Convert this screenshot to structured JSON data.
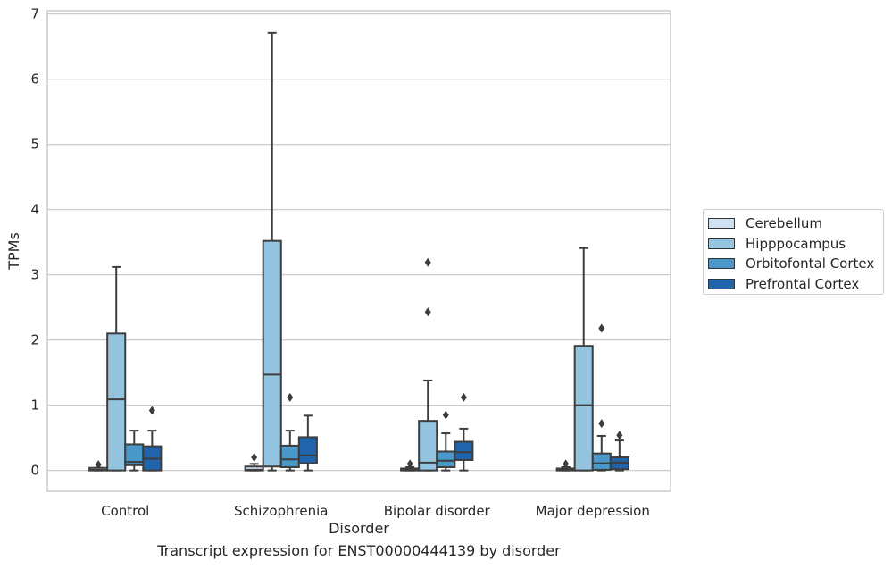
{
  "chart_data": {
    "type": "box",
    "title": "",
    "xlabel": "Disorder",
    "ylabel": "TPMs",
    "caption": "Transcript expression for ENST00000444139 by disorder",
    "ylim": [
      -0.32,
      7.05
    ],
    "yticks": [
      "0",
      "1",
      "2",
      "3",
      "4",
      "5",
      "6",
      "7"
    ],
    "grid": true,
    "legend_position": "right",
    "categories": [
      "Control",
      "Schizophrenia",
      "Bipolar disorder",
      "Major depression"
    ],
    "series": [
      {
        "name": "Cerebellum",
        "color": "#d0e1f2",
        "boxes": [
          {
            "whislo": 0,
            "q1": 0,
            "med": 0.01,
            "q3": 0.04,
            "whishi": 0.04,
            "fliers": [
              0.09
            ]
          },
          {
            "whislo": 0,
            "q1": 0,
            "med": 0.01,
            "q3": 0.06,
            "whishi": 0.1,
            "fliers": [
              0.2
            ]
          },
          {
            "whislo": 0,
            "q1": 0,
            "med": 0.01,
            "q3": 0.03,
            "whishi": 0.05,
            "fliers": [
              0.1
            ]
          },
          {
            "whislo": 0,
            "q1": 0,
            "med": 0.01,
            "q3": 0.03,
            "whishi": 0.05,
            "fliers": [
              0.1
            ]
          }
        ]
      },
      {
        "name": "Hipppocampus",
        "color": "#94c4df",
        "boxes": [
          {
            "whislo": 0,
            "q1": 0,
            "med": 1.09,
            "q3": 2.1,
            "whishi": 3.12,
            "fliers": []
          },
          {
            "whislo": 0,
            "q1": 0.06,
            "med": 1.47,
            "q3": 3.52,
            "whishi": 6.71,
            "fliers": []
          },
          {
            "whislo": 0,
            "q1": 0,
            "med": 0.12,
            "q3": 0.76,
            "whishi": 1.38,
            "fliers": [
              2.43,
              3.19
            ]
          },
          {
            "whislo": 0,
            "q1": 0,
            "med": 1.0,
            "q3": 1.91,
            "whishi": 3.41,
            "fliers": []
          }
        ]
      },
      {
        "name": "Orbitofontal Cortex",
        "color": "#4a98c9",
        "boxes": [
          {
            "whislo": 0,
            "q1": 0.08,
            "med": 0.13,
            "q3": 0.4,
            "whishi": 0.61,
            "fliers": []
          },
          {
            "whislo": 0,
            "q1": 0.05,
            "med": 0.17,
            "q3": 0.38,
            "whishi": 0.61,
            "fliers": [
              1.12
            ]
          },
          {
            "whislo": 0,
            "q1": 0.05,
            "med": 0.15,
            "q3": 0.29,
            "whishi": 0.57,
            "fliers": [
              0.85
            ]
          },
          {
            "whislo": 0,
            "q1": 0.01,
            "med": 0.11,
            "q3": 0.26,
            "whishi": 0.53,
            "fliers": [
              0.72,
              2.18
            ]
          }
        ]
      },
      {
        "name": "Prefrontal Cortex",
        "color": "#2164ab",
        "boxes": [
          {
            "whislo": 0,
            "q1": 0,
            "med": 0.18,
            "q3": 0.37,
            "whishi": 0.61,
            "fliers": [
              0.92
            ]
          },
          {
            "whislo": 0,
            "q1": 0.11,
            "med": 0.23,
            "q3": 0.51,
            "whishi": 0.84,
            "fliers": []
          },
          {
            "whislo": 0,
            "q1": 0.16,
            "med": 0.28,
            "q3": 0.44,
            "whishi": 0.64,
            "fliers": [
              1.12
            ]
          },
          {
            "whislo": 0,
            "q1": 0.02,
            "med": 0.12,
            "q3": 0.2,
            "whishi": 0.46,
            "fliers": [
              0.54
            ]
          }
        ]
      }
    ]
  }
}
